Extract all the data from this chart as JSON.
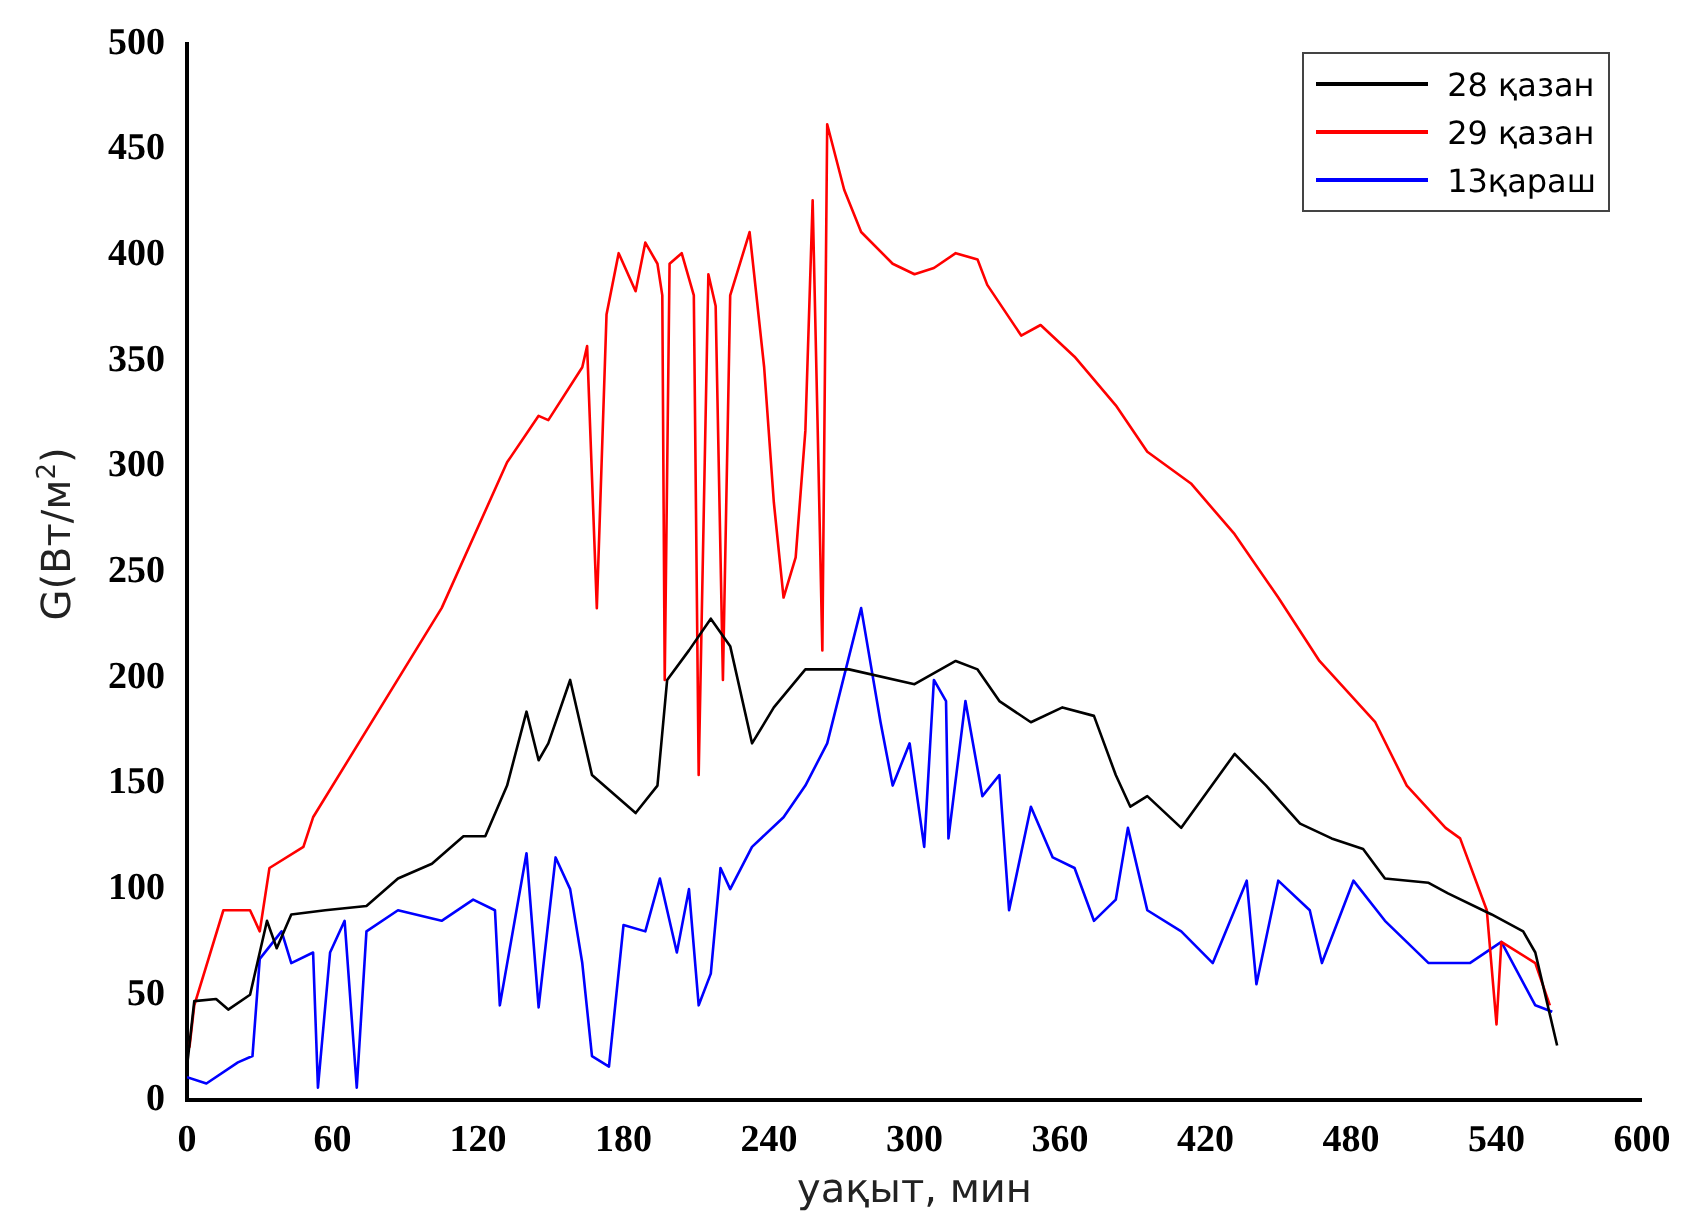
{
  "chart_data": {
    "type": "line",
    "xlabel": "уақыт, мин",
    "ylabel": "G(Вт/м$^{2}$)",
    "xlim": [
      0,
      600
    ],
    "xticks": [
      0,
      60,
      120,
      180,
      240,
      300,
      360,
      420,
      480,
      540,
      600
    ],
    "ylim": [
      0,
      500
    ],
    "yticks": [
      0,
      50,
      100,
      150,
      200,
      250,
      300,
      350,
      400,
      450,
      500
    ],
    "grid": false,
    "legend": "top right",
    "marker": "none",
    "line_style": "solid",
    "series": [
      {
        "name": "28 қазан",
        "color": "#000000",
        "x": [
          0,
          3,
          12,
          17,
          26,
          33,
          37,
          43,
          57,
          74,
          87,
          101,
          114,
          123,
          132,
          140,
          145,
          149,
          158,
          167,
          185,
          194,
          198,
          207,
          216,
          224,
          233,
          242,
          255,
          273,
          300,
          317,
          326,
          335,
          348,
          361,
          374,
          383,
          389,
          396,
          410,
          432,
          445,
          459,
          472,
          485,
          494,
          512,
          520,
          538,
          551,
          556,
          565
        ],
        "values": [
          16,
          47,
          48,
          43,
          50,
          85,
          72,
          88,
          90,
          92,
          105,
          112,
          125,
          125,
          149,
          184,
          161,
          169,
          199,
          154,
          136,
          149,
          199,
          213,
          228,
          215,
          169,
          186,
          204,
          204,
          197,
          208,
          204,
          189,
          179,
          186,
          182,
          154,
          139,
          144,
          129,
          164,
          149,
          131,
          124,
          119,
          105,
          103,
          98,
          88,
          80,
          70,
          26
        ]
      },
      {
        "name": "29 қазан",
        "color": "#ff0000",
        "x": [
          1,
          3,
          15,
          26,
          30,
          34,
          48,
          52,
          105,
          132,
          145,
          149,
          163,
          165,
          169,
          173,
          178,
          185,
          189,
          194,
          196,
          197,
          199,
          204,
          209,
          211,
          215,
          218,
          221,
          224,
          232,
          238,
          242,
          246,
          251,
          255,
          258,
          260,
          262,
          264,
          271,
          278,
          291,
          300,
          308,
          317,
          326,
          330,
          344,
          352,
          366,
          383,
          396,
          414,
          432,
          450,
          467,
          490,
          503,
          519,
          525,
          536,
          540,
          542,
          556,
          562
        ],
        "values": [
          25,
          45,
          90,
          90,
          80,
          110,
          120,
          134,
          233,
          302,
          324,
          322,
          347,
          357,
          233,
          372,
          401,
          383,
          406,
          396,
          381,
          199,
          396,
          401,
          381,
          154,
          391,
          376,
          199,
          381,
          411,
          347,
          283,
          238,
          257,
          317,
          426,
          322,
          213,
          462,
          431,
          411,
          396,
          391,
          394,
          401,
          398,
          386,
          362,
          367,
          352,
          329,
          307,
          292,
          268,
          238,
          208,
          179,
          149,
          129,
          124,
          90,
          36,
          75,
          65,
          45
        ]
      },
      {
        "name": "13қараш",
        "color": "#0000ff",
        "x": [
          0,
          8,
          21,
          27,
          30,
          39,
          43,
          52,
          54,
          59,
          65,
          70,
          74,
          87,
          105,
          118,
          127,
          129,
          140,
          145,
          152,
          158,
          163,
          167,
          174,
          180,
          189,
          195,
          202,
          207,
          211,
          216,
          220,
          224,
          233,
          246,
          255,
          264,
          278,
          286,
          291,
          298,
          304,
          308,
          313,
          314,
          321,
          328,
          335,
          339,
          348,
          357,
          366,
          374,
          383,
          388,
          396,
          410,
          423,
          437,
          441,
          450,
          463,
          468,
          481,
          494,
          512,
          529,
          542,
          556,
          563
        ],
        "values": [
          11,
          8,
          18,
          21,
          67,
          80,
          65,
          70,
          6,
          70,
          85,
          6,
          80,
          90,
          85,
          95,
          90,
          45,
          117,
          44,
          115,
          100,
          65,
          21,
          16,
          83,
          80,
          105,
          70,
          100,
          45,
          60,
          110,
          100,
          120,
          134,
          149,
          169,
          233,
          179,
          149,
          169,
          120,
          199,
          189,
          124,
          189,
          144,
          154,
          90,
          139,
          115,
          110,
          85,
          95,
          129,
          90,
          80,
          65,
          104,
          55,
          104,
          90,
          65,
          104,
          85,
          65,
          65,
          75,
          45,
          42
        ]
      }
    ]
  }
}
